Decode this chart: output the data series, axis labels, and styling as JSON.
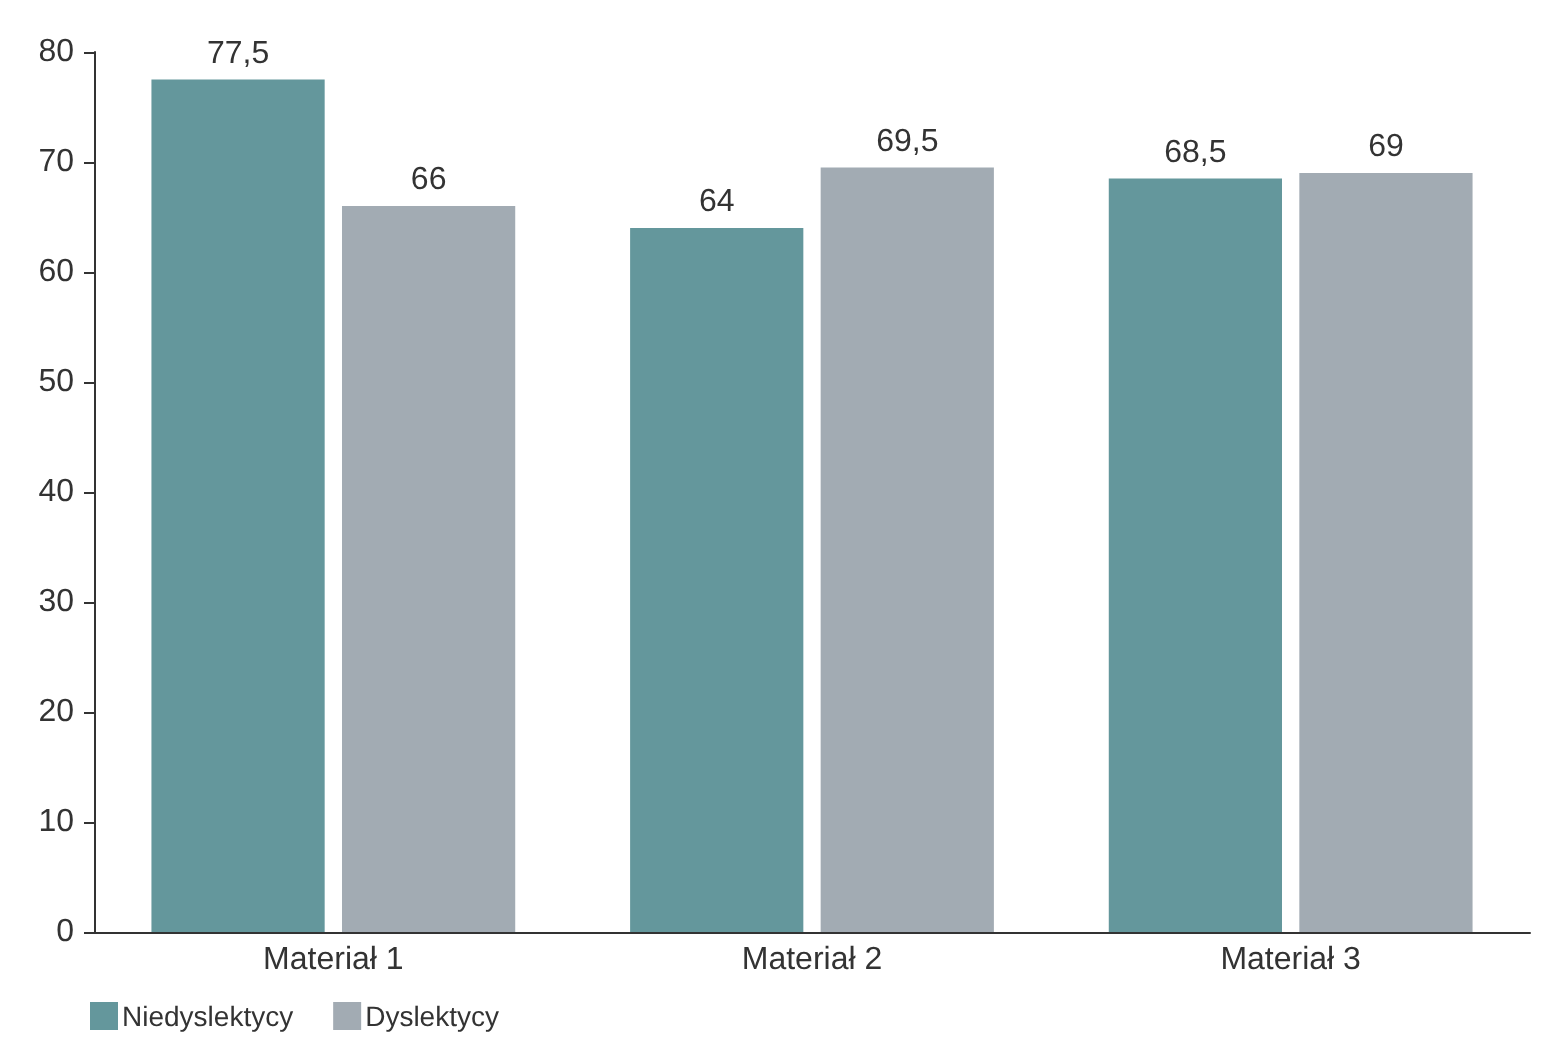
{
  "chart_data": {
    "type": "bar",
    "categories": [
      "Materiał 1",
      "Materiał 2",
      "Materiał 3"
    ],
    "series": [
      {
        "name": "Niedyslektycy",
        "color": "#64979c",
        "values": [
          77.5,
          64,
          68.5
        ],
        "value_labels": [
          "77,5",
          "64",
          "68,5"
        ]
      },
      {
        "name": "Dyslektycy",
        "color": "#a2abb3",
        "values": [
          66,
          69.5,
          69
        ],
        "value_labels": [
          "66",
          "69,5",
          "69"
        ]
      }
    ],
    "ylim": [
      0,
      80
    ],
    "yticks": [
      0,
      10,
      20,
      30,
      40,
      50,
      60,
      70,
      80
    ],
    "grid": false,
    "legend": "bottom left"
  }
}
